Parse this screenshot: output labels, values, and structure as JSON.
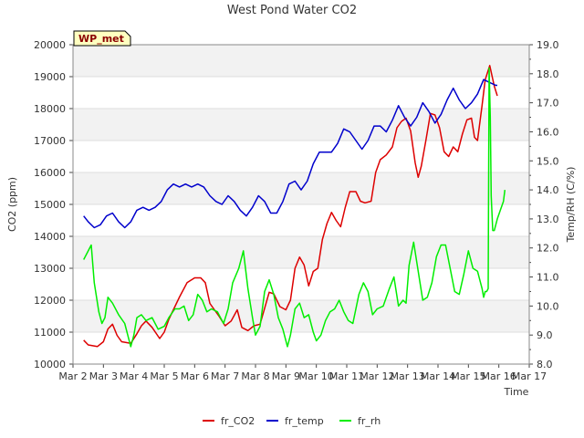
{
  "chart_data": {
    "type": "line",
    "title": "West Pond Water CO2",
    "xlabel": "Time",
    "ylabel": "CO2 (ppm)",
    "y2label": "Temp/RH (C/%)",
    "badge": "WP_met",
    "grid": true,
    "legend_position": "bottom",
    "x_ticks": [
      "Mar 2",
      "Mar 3",
      "Mar 4",
      "Mar 5",
      "Mar 6",
      "Mar 7",
      "Mar 8",
      "Mar 9",
      "Mar 10",
      "Mar 11",
      "Mar 12",
      "Mar 13",
      "Mar 14",
      "Mar 15",
      "Mar 16",
      "Mar 17"
    ],
    "xlim": [
      2,
      17
    ],
    "ylim": [
      10000,
      20000
    ],
    "y_ticks": [
      "10000",
      "11000",
      "12000",
      "13000",
      "14000",
      "15000",
      "16000",
      "17000",
      "18000",
      "19000",
      "20000"
    ],
    "y2lim": [
      8.0,
      19.0
    ],
    "y2_ticks": [
      "8.0",
      "9.0",
      "10.0",
      "11.0",
      "12.0",
      "13.0",
      "14.0",
      "15.0",
      "16.0",
      "17.0",
      "18.0",
      "19.0"
    ],
    "series": [
      {
        "name": "fr_CO2",
        "axis": "left",
        "color": "#dd0000",
        "points": [
          [
            2.35,
            10750
          ],
          [
            2.5,
            10600
          ],
          [
            2.8,
            10550
          ],
          [
            3.0,
            10700
          ],
          [
            3.15,
            11100
          ],
          [
            3.3,
            11250
          ],
          [
            3.45,
            10900
          ],
          [
            3.6,
            10700
          ],
          [
            3.9,
            10650
          ],
          [
            4.1,
            10950
          ],
          [
            4.25,
            11200
          ],
          [
            4.4,
            11350
          ],
          [
            4.6,
            11150
          ],
          [
            4.85,
            10800
          ],
          [
            5.0,
            11000
          ],
          [
            5.15,
            11400
          ],
          [
            5.3,
            11700
          ],
          [
            5.5,
            12100
          ],
          [
            5.75,
            12550
          ],
          [
            6.0,
            12700
          ],
          [
            6.2,
            12700
          ],
          [
            6.35,
            12550
          ],
          [
            6.5,
            11900
          ],
          [
            6.65,
            11700
          ],
          [
            6.8,
            11500
          ],
          [
            7.0,
            11200
          ],
          [
            7.2,
            11350
          ],
          [
            7.4,
            11700
          ],
          [
            7.55,
            11150
          ],
          [
            7.75,
            11050
          ],
          [
            7.95,
            11200
          ],
          [
            8.15,
            11250
          ],
          [
            8.3,
            11750
          ],
          [
            8.45,
            12250
          ],
          [
            8.6,
            12200
          ],
          [
            8.8,
            11800
          ],
          [
            9.0,
            11700
          ],
          [
            9.15,
            12000
          ],
          [
            9.3,
            13000
          ],
          [
            9.45,
            13350
          ],
          [
            9.6,
            13100
          ],
          [
            9.75,
            12450
          ],
          [
            9.9,
            12900
          ],
          [
            10.05,
            13000
          ],
          [
            10.2,
            13900
          ],
          [
            10.35,
            14400
          ],
          [
            10.5,
            14750
          ],
          [
            10.65,
            14500
          ],
          [
            10.8,
            14300
          ],
          [
            10.95,
            14900
          ],
          [
            11.1,
            15400
          ],
          [
            11.3,
            15400
          ],
          [
            11.45,
            15100
          ],
          [
            11.6,
            15050
          ],
          [
            11.8,
            15100
          ],
          [
            11.95,
            16000
          ],
          [
            12.1,
            16400
          ],
          [
            12.3,
            16550
          ],
          [
            12.5,
            16800
          ],
          [
            12.65,
            17400
          ],
          [
            12.8,
            17600
          ],
          [
            12.95,
            17700
          ],
          [
            13.1,
            17300
          ],
          [
            13.25,
            16300
          ],
          [
            13.35,
            15850
          ],
          [
            13.45,
            16200
          ],
          [
            13.6,
            17000
          ],
          [
            13.75,
            17850
          ],
          [
            13.9,
            17800
          ],
          [
            14.05,
            17400
          ],
          [
            14.2,
            16650
          ],
          [
            14.35,
            16500
          ],
          [
            14.5,
            16800
          ],
          [
            14.65,
            16650
          ],
          [
            14.8,
            17200
          ],
          [
            14.95,
            17650
          ],
          [
            15.1,
            17700
          ],
          [
            15.2,
            17100
          ],
          [
            15.3,
            17000
          ],
          [
            15.45,
            18100
          ],
          [
            15.55,
            18900
          ],
          [
            15.7,
            19350
          ],
          [
            15.85,
            18700
          ],
          [
            15.95,
            18400
          ]
        ]
      },
      {
        "name": "fr_temp",
        "axis": "right",
        "color": "#0000cc",
        "points": [
          [
            2.35,
            13.1
          ],
          [
            2.5,
            12.9
          ],
          [
            2.7,
            12.7
          ],
          [
            2.9,
            12.8
          ],
          [
            3.1,
            13.1
          ],
          [
            3.3,
            13.2
          ],
          [
            3.5,
            12.9
          ],
          [
            3.7,
            12.7
          ],
          [
            3.9,
            12.9
          ],
          [
            4.1,
            13.3
          ],
          [
            4.3,
            13.4
          ],
          [
            4.5,
            13.3
          ],
          [
            4.7,
            13.4
          ],
          [
            4.9,
            13.6
          ],
          [
            5.1,
            14.0
          ],
          [
            5.3,
            14.2
          ],
          [
            5.5,
            14.1
          ],
          [
            5.7,
            14.2
          ],
          [
            5.9,
            14.1
          ],
          [
            6.1,
            14.2
          ],
          [
            6.3,
            14.1
          ],
          [
            6.5,
            13.8
          ],
          [
            6.7,
            13.6
          ],
          [
            6.9,
            13.5
          ],
          [
            7.1,
            13.8
          ],
          [
            7.3,
            13.6
          ],
          [
            7.5,
            13.3
          ],
          [
            7.7,
            13.1
          ],
          [
            7.9,
            13.4
          ],
          [
            8.1,
            13.8
          ],
          [
            8.3,
            13.6
          ],
          [
            8.5,
            13.2
          ],
          [
            8.7,
            13.2
          ],
          [
            8.9,
            13.6
          ],
          [
            9.1,
            14.2
          ],
          [
            9.3,
            14.3
          ],
          [
            9.5,
            14.0
          ],
          [
            9.7,
            14.3
          ],
          [
            9.9,
            14.9
          ],
          [
            10.1,
            15.3
          ],
          [
            10.3,
            15.3
          ],
          [
            10.5,
            15.3
          ],
          [
            10.7,
            15.6
          ],
          [
            10.9,
            16.1
          ],
          [
            11.1,
            16.0
          ],
          [
            11.3,
            15.7
          ],
          [
            11.5,
            15.4
          ],
          [
            11.7,
            15.7
          ],
          [
            11.9,
            16.2
          ],
          [
            12.1,
            16.2
          ],
          [
            12.3,
            16.0
          ],
          [
            12.5,
            16.4
          ],
          [
            12.7,
            16.9
          ],
          [
            12.9,
            16.5
          ],
          [
            13.1,
            16.2
          ],
          [
            13.3,
            16.5
          ],
          [
            13.5,
            17.0
          ],
          [
            13.7,
            16.7
          ],
          [
            13.9,
            16.3
          ],
          [
            14.1,
            16.6
          ],
          [
            14.3,
            17.1
          ],
          [
            14.5,
            17.5
          ],
          [
            14.7,
            17.1
          ],
          [
            14.9,
            16.8
          ],
          [
            15.1,
            17.0
          ],
          [
            15.3,
            17.3
          ],
          [
            15.5,
            17.8
          ],
          [
            15.7,
            17.7
          ],
          [
            15.9,
            17.6
          ],
          [
            15.95,
            17.6
          ]
        ]
      },
      {
        "name": "fr_rh",
        "axis": "right",
        "color": "#00ee00",
        "points": [
          [
            2.35,
            11.6
          ],
          [
            2.5,
            11.9
          ],
          [
            2.6,
            12.1
          ],
          [
            2.7,
            10.8
          ],
          [
            2.85,
            9.8
          ],
          [
            2.95,
            9.4
          ],
          [
            3.05,
            9.6
          ],
          [
            3.15,
            10.3
          ],
          [
            3.3,
            10.1
          ],
          [
            3.5,
            9.7
          ],
          [
            3.7,
            9.4
          ],
          [
            3.9,
            8.6
          ],
          [
            4.0,
            9.0
          ],
          [
            4.1,
            9.6
          ],
          [
            4.25,
            9.7
          ],
          [
            4.4,
            9.5
          ],
          [
            4.6,
            9.6
          ],
          [
            4.8,
            9.2
          ],
          [
            5.0,
            9.3
          ],
          [
            5.15,
            9.6
          ],
          [
            5.35,
            9.9
          ],
          [
            5.5,
            9.9
          ],
          [
            5.65,
            10.0
          ],
          [
            5.8,
            9.5
          ],
          [
            5.95,
            9.7
          ],
          [
            6.1,
            10.4
          ],
          [
            6.25,
            10.2
          ],
          [
            6.4,
            9.8
          ],
          [
            6.55,
            9.9
          ],
          [
            6.75,
            9.8
          ],
          [
            6.95,
            9.4
          ],
          [
            7.1,
            9.9
          ],
          [
            7.25,
            10.8
          ],
          [
            7.45,
            11.3
          ],
          [
            7.6,
            11.9
          ],
          [
            7.75,
            10.6
          ],
          [
            7.9,
            9.6
          ],
          [
            8.0,
            9.0
          ],
          [
            8.15,
            9.3
          ],
          [
            8.3,
            10.5
          ],
          [
            8.45,
            10.9
          ],
          [
            8.6,
            10.4
          ],
          [
            8.75,
            9.6
          ],
          [
            8.9,
            9.2
          ],
          [
            9.05,
            8.6
          ],
          [
            9.15,
            9.0
          ],
          [
            9.3,
            9.9
          ],
          [
            9.45,
            10.1
          ],
          [
            9.6,
            9.6
          ],
          [
            9.75,
            9.7
          ],
          [
            9.9,
            9.1
          ],
          [
            10.0,
            8.8
          ],
          [
            10.15,
            9.0
          ],
          [
            10.3,
            9.5
          ],
          [
            10.45,
            9.8
          ],
          [
            10.6,
            9.9
          ],
          [
            10.75,
            10.2
          ],
          [
            10.9,
            9.8
          ],
          [
            11.05,
            9.5
          ],
          [
            11.2,
            9.4
          ],
          [
            11.4,
            10.4
          ],
          [
            11.55,
            10.8
          ],
          [
            11.7,
            10.5
          ],
          [
            11.85,
            9.7
          ],
          [
            12.0,
            9.9
          ],
          [
            12.2,
            10.0
          ],
          [
            12.4,
            10.6
          ],
          [
            12.55,
            11.0
          ],
          [
            12.7,
            10.0
          ],
          [
            12.85,
            10.2
          ],
          [
            12.95,
            10.1
          ],
          [
            13.05,
            11.4
          ],
          [
            13.2,
            12.2
          ],
          [
            13.35,
            11.2
          ],
          [
            13.5,
            10.2
          ],
          [
            13.65,
            10.3
          ],
          [
            13.8,
            10.8
          ],
          [
            13.95,
            11.7
          ],
          [
            14.1,
            12.1
          ],
          [
            14.25,
            12.1
          ],
          [
            14.4,
            11.3
          ],
          [
            14.55,
            10.5
          ],
          [
            14.7,
            10.4
          ],
          [
            14.85,
            11.1
          ],
          [
            15.0,
            11.9
          ],
          [
            15.15,
            11.3
          ],
          [
            15.3,
            11.2
          ],
          [
            15.45,
            10.6
          ],
          [
            15.5,
            10.3
          ],
          [
            15.55,
            10.5
          ],
          [
            15.6,
            10.5
          ],
          [
            15.65,
            10.6
          ],
          [
            15.68,
            18.2
          ],
          [
            15.72,
            16.5
          ],
          [
            15.75,
            13.8
          ],
          [
            15.8,
            12.6
          ],
          [
            15.85,
            12.6
          ],
          [
            15.95,
            13.0
          ],
          [
            16.05,
            13.3
          ],
          [
            16.15,
            13.6
          ],
          [
            16.2,
            14.0
          ]
        ]
      }
    ]
  }
}
